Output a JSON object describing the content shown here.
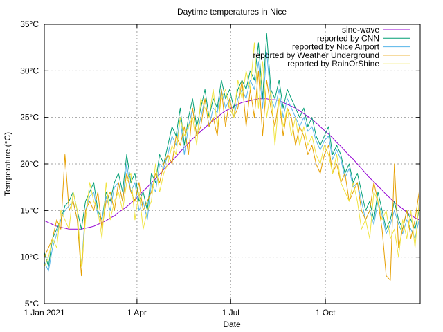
{
  "chart_data": {
    "type": "line",
    "title": "Daytime temperatures in Nice",
    "xlabel": "Date",
    "ylabel": "Temperature (°C)",
    "xlim": [
      "2021-01-01",
      "2021-12-31"
    ],
    "ylim": [
      5,
      35
    ],
    "y_ticks": [
      5,
      10,
      15,
      20,
      25,
      30,
      35
    ],
    "y_tick_unit": "°C",
    "x_ticks": [
      {
        "date": "2021-01-01",
        "label": "1 Jan 2021"
      },
      {
        "date": "2021-04-01",
        "label": "1 Apr"
      },
      {
        "date": "2021-07-01",
        "label": "1 Jul"
      },
      {
        "date": "2021-10-01",
        "label": "1 Oct"
      }
    ],
    "grid": true,
    "legend_position": "top-right",
    "x": [
      "2021-01-01",
      "2021-01-05",
      "2021-01-09",
      "2021-01-13",
      "2021-01-17",
      "2021-01-21",
      "2021-01-25",
      "2021-01-29",
      "2021-02-02",
      "2021-02-06",
      "2021-02-10",
      "2021-02-14",
      "2021-02-18",
      "2021-02-22",
      "2021-02-26",
      "2021-03-02",
      "2021-03-06",
      "2021-03-10",
      "2021-03-14",
      "2021-03-18",
      "2021-03-22",
      "2021-03-26",
      "2021-03-30",
      "2021-04-03",
      "2021-04-07",
      "2021-04-11",
      "2021-04-15",
      "2021-04-19",
      "2021-04-23",
      "2021-04-27",
      "2021-05-01",
      "2021-05-05",
      "2021-05-09",
      "2021-05-13",
      "2021-05-17",
      "2021-05-21",
      "2021-05-25",
      "2021-05-29",
      "2021-06-02",
      "2021-06-06",
      "2021-06-10",
      "2021-06-14",
      "2021-06-18",
      "2021-06-22",
      "2021-06-26",
      "2021-06-30",
      "2021-07-04",
      "2021-07-08",
      "2021-07-12",
      "2021-07-16",
      "2021-07-20",
      "2021-07-24",
      "2021-07-28",
      "2021-08-01",
      "2021-08-05",
      "2021-08-09",
      "2021-08-13",
      "2021-08-17",
      "2021-08-21",
      "2021-08-25",
      "2021-08-29",
      "2021-09-02",
      "2021-09-06",
      "2021-09-10",
      "2021-09-14",
      "2021-09-18",
      "2021-09-22",
      "2021-09-26",
      "2021-09-30",
      "2021-10-04",
      "2021-10-08",
      "2021-10-12",
      "2021-10-16",
      "2021-10-20",
      "2021-10-24",
      "2021-10-28",
      "2021-11-01",
      "2021-11-05",
      "2021-11-09",
      "2021-11-13",
      "2021-11-17",
      "2021-11-21",
      "2021-11-25",
      "2021-11-29",
      "2021-12-03",
      "2021-12-07",
      "2021-12-11",
      "2021-12-15",
      "2021-12-19",
      "2021-12-23",
      "2021-12-27",
      "2021-12-31"
    ],
    "series": [
      {
        "name": "sine-wave",
        "color": "#9400d3",
        "values": [
          13.9,
          13.7,
          13.5,
          13.3,
          13.2,
          13.1,
          13.0,
          13.0,
          13.0,
          13.0,
          13.1,
          13.2,
          13.3,
          13.5,
          13.7,
          13.9,
          14.2,
          14.4,
          14.8,
          15.1,
          15.4,
          15.8,
          16.2,
          16.6,
          17.1,
          17.5,
          18.0,
          18.4,
          18.9,
          19.4,
          19.9,
          20.3,
          20.8,
          21.3,
          21.8,
          22.2,
          22.7,
          23.1,
          23.5,
          23.9,
          24.3,
          24.7,
          25.0,
          25.4,
          25.7,
          25.9,
          26.2,
          26.4,
          26.6,
          26.7,
          26.8,
          26.9,
          27.0,
          27.0,
          27.0,
          26.9,
          26.9,
          26.8,
          26.6,
          26.4,
          26.2,
          26.0,
          25.7,
          25.4,
          25.1,
          24.8,
          24.4,
          24.0,
          23.6,
          23.2,
          22.8,
          22.3,
          21.9,
          21.4,
          20.9,
          20.5,
          20.0,
          19.5,
          19.0,
          18.5,
          18.1,
          17.6,
          17.2,
          16.7,
          16.3,
          15.9,
          15.5,
          15.2,
          14.8,
          14.5,
          14.2,
          14.0
        ]
      },
      {
        "name": "reported by CNN",
        "color": "#009e73",
        "values": [
          10.5,
          9,
          12,
          13,
          14,
          15.5,
          16,
          17,
          15,
          13,
          16,
          17,
          18,
          15,
          14,
          17,
          16,
          18,
          19,
          17,
          21,
          18,
          19,
          16,
          17,
          15,
          19,
          18,
          21,
          20,
          22,
          24,
          23,
          26,
          22,
          25,
          27,
          24,
          26,
          28,
          25,
          27,
          26,
          29,
          27,
          28,
          26,
          28,
          29,
          28,
          30,
          29,
          33,
          27,
          34,
          28,
          27,
          29,
          26,
          28,
          27,
          26,
          25,
          26,
          24,
          25,
          23,
          22,
          23,
          24,
          21,
          22,
          21,
          19,
          20,
          18,
          19,
          17,
          15,
          16,
          14,
          17,
          15,
          13,
          14,
          16,
          14,
          13,
          15,
          14,
          13,
          15
        ]
      },
      {
        "name": "reported by Nice Airport",
        "color": "#56b4e9",
        "values": [
          9.5,
          8.5,
          11,
          12.5,
          14,
          15,
          15.5,
          16,
          14,
          9,
          15,
          16.5,
          17,
          14.5,
          14,
          16.5,
          15,
          17.5,
          18,
          16,
          20,
          17,
          18,
          15,
          16,
          14,
          18,
          17,
          20,
          19.5,
          21,
          23,
          22,
          25,
          21,
          24,
          26,
          23,
          25,
          27,
          24,
          26,
          25.5,
          28,
          26,
          27,
          25,
          27,
          28,
          27,
          29,
          28,
          31,
          26,
          32,
          27,
          26,
          28,
          25,
          27,
          26,
          25,
          24,
          25,
          23.5,
          24,
          22.5,
          21.5,
          22.5,
          23,
          20.5,
          21.5,
          20.5,
          18.5,
          19.5,
          17.5,
          18,
          16,
          14,
          15,
          13.5,
          16,
          14.5,
          12.5,
          13.5,
          15,
          13.5,
          12.5,
          14,
          13,
          12,
          14
        ]
      },
      {
        "name": "reported by Weather Underground",
        "color": "#e69f00",
        "values": [
          10,
          11,
          12,
          14,
          13,
          21,
          15,
          16,
          14,
          8,
          15,
          16,
          15,
          17,
          13,
          16,
          17,
          15,
          18,
          16,
          19,
          17,
          16,
          18,
          15,
          16,
          17,
          19,
          18,
          20,
          21,
          20,
          23,
          22,
          24,
          21,
          26,
          23,
          24,
          27,
          24,
          25,
          23,
          28,
          24,
          27,
          25,
          26,
          29,
          24,
          28,
          25,
          30,
          23,
          29,
          26,
          24,
          27,
          23,
          26,
          25,
          22,
          24,
          23,
          21,
          22,
          20,
          19,
          21,
          22,
          19,
          20,
          18,
          19,
          16,
          17,
          18,
          15,
          14,
          15,
          18,
          16,
          13,
          8,
          7.5,
          20,
          11,
          13,
          15,
          12,
          14,
          17
        ]
      },
      {
        "name": "reported by RainOrShine",
        "color": "#f0e442",
        "values": [
          9,
          10,
          12,
          11,
          15,
          14,
          13,
          17,
          15,
          9,
          14,
          18,
          16,
          15,
          12,
          18,
          14,
          16,
          17,
          15,
          18,
          19,
          14,
          17,
          13,
          15,
          16,
          20,
          17,
          19,
          20,
          22,
          21,
          25,
          23,
          24,
          25,
          22,
          27,
          26,
          25,
          28,
          24,
          27,
          28,
          26,
          25,
          29,
          27,
          30,
          28,
          33,
          26,
          31,
          25,
          28,
          22,
          27,
          24,
          26,
          23,
          25,
          22,
          24,
          22,
          23,
          21,
          20,
          22,
          21,
          19,
          21,
          18,
          17,
          16,
          18,
          16,
          13,
          14,
          12,
          17,
          16,
          14,
          15,
          12,
          13,
          10,
          14,
          12,
          15,
          11,
          16
        ]
      }
    ]
  }
}
